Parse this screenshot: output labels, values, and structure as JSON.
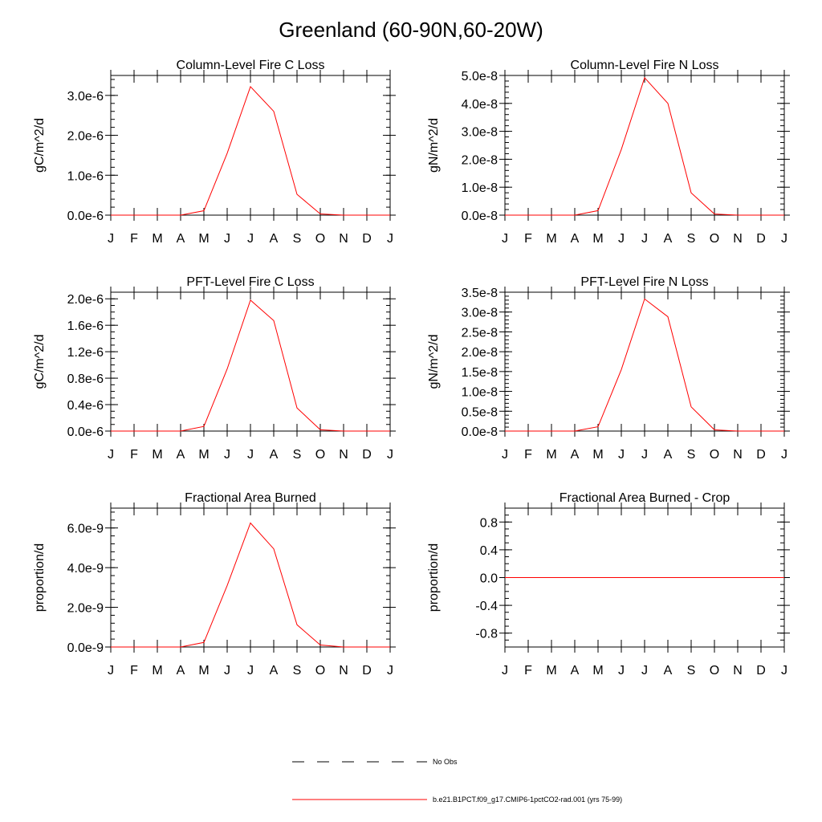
{
  "title": "Greenland (60-90N,60-20W)",
  "months": [
    "J",
    "F",
    "M",
    "A",
    "M",
    "J",
    "J",
    "A",
    "S",
    "O",
    "N",
    "D",
    "J"
  ],
  "line_color": "#ff0000",
  "chart_data": [
    {
      "type": "line",
      "title": "Column-Level Fire C Loss",
      "ylabel": "gC/m^2/d",
      "ylim": [
        0,
        3.5e-06
      ],
      "yticks": [
        0,
        1e-06,
        2e-06,
        3e-06
      ],
      "ytick_labels": [
        "0.0e-6",
        "1.0e-6",
        "2.0e-6",
        "3.0e-6"
      ],
      "yminor_step": 2e-07,
      "values": [
        0,
        0,
        0,
        0,
        1.1e-07,
        1.55e-06,
        3.22e-06,
        2.6e-06,
        5.2e-07,
        3e-08,
        0,
        0,
        0
      ]
    },
    {
      "type": "line",
      "title": "Column-Level Fire N Loss",
      "ylabel": "gN/m^2/d",
      "ylim": [
        0,
        5e-08
      ],
      "yticks": [
        0,
        1e-08,
        2e-08,
        3e-08,
        4e-08,
        5e-08
      ],
      "ytick_labels": [
        "0.0e-8",
        "1.0e-8",
        "2.0e-8",
        "3.0e-8",
        "4.0e-8",
        "5.0e-8"
      ],
      "yminor_step": 2e-09,
      "values": [
        0,
        0,
        0,
        0,
        1.6e-09,
        2.35e-08,
        4.92e-08,
        4e-08,
        8e-09,
        4e-10,
        0,
        0,
        0
      ]
    },
    {
      "type": "line",
      "title": "PFT-Level Fire C Loss",
      "ylabel": "gC/m^2/d",
      "ylim": [
        0,
        2.1e-06
      ],
      "yticks": [
        0,
        4e-07,
        8e-07,
        1.2e-06,
        1.6e-06,
        2e-06
      ],
      "ytick_labels": [
        "0.0e-6",
        "0.4e-6",
        "0.8e-6",
        "1.2e-6",
        "1.6e-6",
        "2.0e-6"
      ],
      "yminor_step": 1e-07,
      "values": [
        0,
        0,
        0,
        0,
        7e-08,
        9.4e-07,
        1.98e-06,
        1.67e-06,
        3.5e-07,
        2e-08,
        0,
        0,
        0
      ]
    },
    {
      "type": "line",
      "title": "PFT-Level Fire N Loss",
      "ylabel": "gN/m^2/d",
      "ylim": [
        0,
        3.5e-08
      ],
      "yticks": [
        0,
        5e-09,
        1e-08,
        1.5e-08,
        2e-08,
        2.5e-08,
        3e-08,
        3.5e-08
      ],
      "ytick_labels": [
        "0.0e-8",
        "0.5e-8",
        "1.0e-8",
        "1.5e-8",
        "2.0e-8",
        "2.5e-8",
        "3.0e-8",
        "3.5e-8"
      ],
      "yminor_step": 1e-09,
      "values": [
        0,
        0,
        0,
        0,
        1.1e-09,
        1.55e-08,
        3.33e-08,
        2.88e-08,
        6.1e-09,
        3e-10,
        0,
        0,
        0
      ]
    },
    {
      "type": "line",
      "title": "Fractional Area Burned",
      "ylabel": "proportion/d",
      "ylim": [
        0,
        7e-09
      ],
      "yticks": [
        0,
        2e-09,
        4e-09,
        6e-09
      ],
      "ytick_labels": [
        "0.0e-9",
        "2.0e-9",
        "4.0e-9",
        "6.0e-9"
      ],
      "yminor_step": 4e-10,
      "values": [
        0,
        0,
        0,
        0,
        2.3e-10,
        3.1e-09,
        6.25e-09,
        4.95e-09,
        1.12e-09,
        1e-10,
        0,
        0,
        0
      ]
    },
    {
      "type": "line",
      "title": "Fractional Area Burned - Crop",
      "ylabel": "proportion/d",
      "ylim": [
        -1,
        1
      ],
      "yticks": [
        -0.8,
        -0.4,
        0,
        0.4,
        0.8
      ],
      "ytick_labels": [
        "-0.8",
        "-0.4",
        "0.0",
        "0.4",
        "0.8"
      ],
      "yminor_step": 0.1,
      "values": [
        0,
        0,
        0,
        0,
        0,
        0,
        0,
        0,
        0,
        0,
        0,
        0,
        0
      ]
    }
  ],
  "legend": [
    {
      "label": "No Obs",
      "style": "dashed",
      "color": "#000000"
    },
    {
      "label": "b.e21.B1PCT.f09_g17.CMIP6-1pctCO2-rad.001 (yrs 75-99)",
      "style": "solid",
      "color": "#ff0000"
    }
  ]
}
